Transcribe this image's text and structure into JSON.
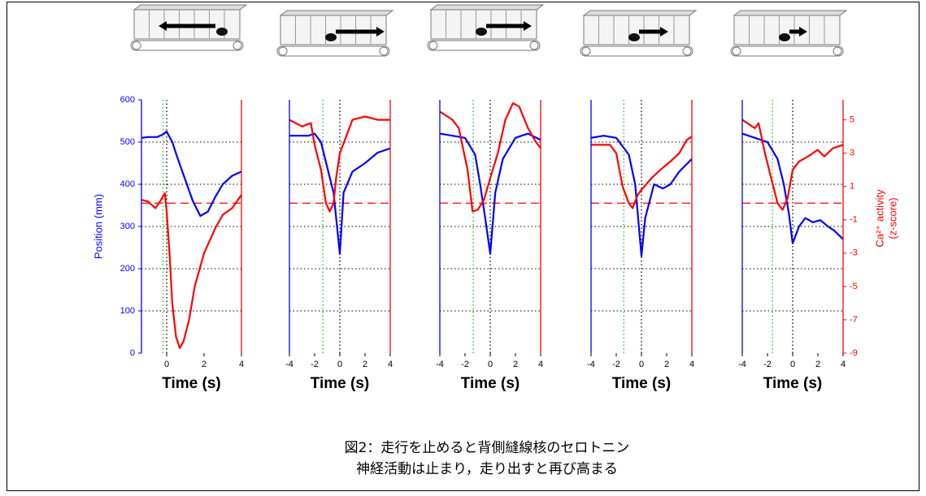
{
  "chart_data": [
    {
      "type": "line",
      "xlim": [
        -1.35,
        4
      ],
      "xticks": [
        0,
        2,
        4
      ],
      "ylim": [
        0,
        600
      ],
      "yticks": [
        0,
        100,
        200,
        300,
        400,
        500,
        600
      ],
      "y2lim": [
        -9,
        6.2
      ],
      "xlabel": "Time (s)",
      "ylabel": "Position (mm)",
      "grid": true,
      "vlines": [
        {
          "x": -0.2,
          "color": "#22bb22"
        },
        {
          "x": 0,
          "color": "#000000"
        }
      ],
      "reference_line": {
        "axis": "y2",
        "value": 0,
        "color": "#ff0000"
      },
      "series": [
        {
          "color": "#0000ff",
          "axis": "y",
          "x": [
            -1.35,
            -1,
            -0.5,
            -0.2,
            0,
            0.3,
            0.6,
            1,
            1.4,
            1.8,
            2.2,
            2.6,
            3,
            3.5,
            4
          ],
          "values": [
            510,
            512,
            512,
            518,
            525,
            500,
            460,
            410,
            360,
            325,
            335,
            370,
            400,
            420,
            430
          ]
        },
        {
          "color": "#ff0000",
          "axis": "y2",
          "x": [
            -1.35,
            -1,
            -0.6,
            -0.3,
            -0.1,
            0,
            0.15,
            0.3,
            0.5,
            0.7,
            0.9,
            1.2,
            1.5,
            2,
            2.6,
            3,
            3.5,
            4
          ],
          "values": [
            0.2,
            0.1,
            -0.3,
            0.2,
            0.6,
            -0.5,
            -3,
            -6,
            -8,
            -8.7,
            -8.3,
            -7,
            -5,
            -3,
            -1.5,
            -0.7,
            -0.3,
            0.5
          ]
        }
      ]
    },
    {
      "type": "line",
      "xlim": [
        -4,
        4
      ],
      "xticks": [
        -4,
        -2,
        0,
        2,
        4
      ],
      "ylim": [
        0,
        600
      ],
      "y2lim": [
        -9,
        6.2
      ],
      "xlabel": "Time (s)",
      "grid": true,
      "vlines": [
        {
          "x": -1.35,
          "color": "#22bb22"
        },
        {
          "x": 0,
          "color": "#000000"
        }
      ],
      "reference_line": {
        "axis": "y2",
        "value": 0,
        "color": "#ff0000"
      },
      "series": [
        {
          "color": "#0000ff",
          "axis": "y",
          "x": [
            -4,
            -2.5,
            -2,
            -1.5,
            -1,
            -0.5,
            0,
            0.3,
            1,
            2,
            3,
            4
          ],
          "values": [
            515,
            515,
            520,
            500,
            440,
            380,
            235,
            380,
            430,
            450,
            475,
            485
          ]
        },
        {
          "color": "#ff0000",
          "axis": "y2",
          "x": [
            -4,
            -3,
            -2.3,
            -2,
            -1.5,
            -1.1,
            -0.8,
            -0.5,
            -0.3,
            0,
            0.5,
            1,
            2,
            3,
            4
          ],
          "values": [
            5,
            4.6,
            4.8,
            3.5,
            2,
            0,
            -0.5,
            0,
            1.5,
            3,
            4,
            5,
            5.2,
            5,
            5
          ]
        }
      ]
    },
    {
      "type": "line",
      "xlim": [
        -4,
        4
      ],
      "xticks": [
        -4,
        -2,
        0,
        2,
        4
      ],
      "ylim": [
        0,
        600
      ],
      "y2lim": [
        -9,
        6.2
      ],
      "xlabel": "Time (s)",
      "grid": true,
      "vlines": [
        {
          "x": -1.35,
          "color": "#22bb22"
        },
        {
          "x": 0,
          "color": "#000000"
        }
      ],
      "reference_line": {
        "axis": "y2",
        "value": 0,
        "color": "#ff0000"
      },
      "series": [
        {
          "color": "#0000ff",
          "axis": "y",
          "x": [
            -4,
            -3,
            -2,
            -1.2,
            -0.8,
            -0.4,
            0,
            0.4,
            1,
            2,
            3,
            4
          ],
          "values": [
            520,
            515,
            510,
            470,
            400,
            320,
            235,
            380,
            460,
            510,
            520,
            505
          ]
        },
        {
          "color": "#ff0000",
          "axis": "y2",
          "x": [
            -4,
            -3,
            -2.5,
            -1.8,
            -1.4,
            -1,
            -0.5,
            0,
            0.6,
            1.2,
            1.8,
            2.3,
            3,
            3.6,
            4
          ],
          "values": [
            5.5,
            5,
            4.5,
            2,
            -0.5,
            -0.4,
            0.2,
            1.5,
            3,
            5,
            6,
            5.8,
            4.5,
            3.7,
            3.3
          ]
        }
      ]
    },
    {
      "type": "line",
      "xlim": [
        -4,
        4
      ],
      "xticks": [
        -4,
        -2,
        0,
        2,
        4
      ],
      "ylim": [
        0,
        600
      ],
      "y2lim": [
        -9,
        6.2
      ],
      "xlabel": "Time (s)",
      "grid": true,
      "vlines": [
        {
          "x": -1.4,
          "color": "#22bb22"
        },
        {
          "x": 0,
          "color": "#000000"
        }
      ],
      "reference_line": {
        "axis": "y2",
        "value": 0,
        "color": "#ff0000"
      },
      "series": [
        {
          "color": "#0000ff",
          "axis": "y",
          "x": [
            -4,
            -3,
            -2,
            -1,
            -0.5,
            0,
            0.3,
            1,
            1.7,
            2.3,
            3,
            4
          ],
          "values": [
            510,
            515,
            510,
            470,
            400,
            230,
            320,
            400,
            390,
            400,
            430,
            460
          ]
        },
        {
          "color": "#ff0000",
          "axis": "y2",
          "x": [
            -4,
            -2.5,
            -2,
            -1.5,
            -1,
            -0.7,
            -0.3,
            0,
            0.8,
            1.5,
            2.3,
            3,
            3.6,
            4
          ],
          "values": [
            3.5,
            3.5,
            3,
            1,
            0,
            -0.3,
            0.5,
            0.8,
            1.5,
            2,
            2.5,
            3,
            3.8,
            4
          ]
        }
      ]
    },
    {
      "type": "line",
      "xlim": [
        -4,
        4
      ],
      "xticks": [
        -4,
        -2,
        0,
        2,
        4
      ],
      "ylim": [
        0,
        600
      ],
      "y2lim": [
        -9,
        6.2
      ],
      "y2ticks": [
        -9,
        -7,
        -5,
        -3,
        -1,
        1,
        3,
        5
      ],
      "xlabel": "Time (s)",
      "y2label": [
        "Ca²⁺ activity",
        "(z-score)"
      ],
      "grid": true,
      "vlines": [
        {
          "x": -1.6,
          "color": "#22bb22"
        },
        {
          "x": 0,
          "color": "#000000"
        }
      ],
      "reference_line": {
        "axis": "y2",
        "value": 0,
        "color": "#ff0000"
      },
      "series": [
        {
          "color": "#0000ff",
          "axis": "y",
          "x": [
            -4,
            -3,
            -2,
            -1.2,
            -0.7,
            -0.3,
            0,
            0.5,
            1,
            1.6,
            2.2,
            2.8,
            3.3,
            4
          ],
          "values": [
            520,
            510,
            500,
            460,
            400,
            330,
            260,
            300,
            320,
            310,
            315,
            300,
            290,
            270
          ]
        },
        {
          "color": "#ff0000",
          "axis": "y2",
          "x": [
            -4,
            -3,
            -2.7,
            -2.2,
            -1.7,
            -1.2,
            -0.8,
            -0.4,
            0,
            0.5,
            1.2,
            2,
            2.5,
            3.2,
            4
          ],
          "values": [
            5,
            4.5,
            4.8,
            3,
            1.5,
            0,
            -0.4,
            0.3,
            2,
            2.5,
            2.8,
            3.2,
            2.8,
            3.3,
            3.5
          ]
        }
      ]
    }
  ],
  "caption": [
    "図2：走行を止めると背側縫線核のセロトニン",
    "神経活動は止まり，走り出すと再び高まる"
  ]
}
